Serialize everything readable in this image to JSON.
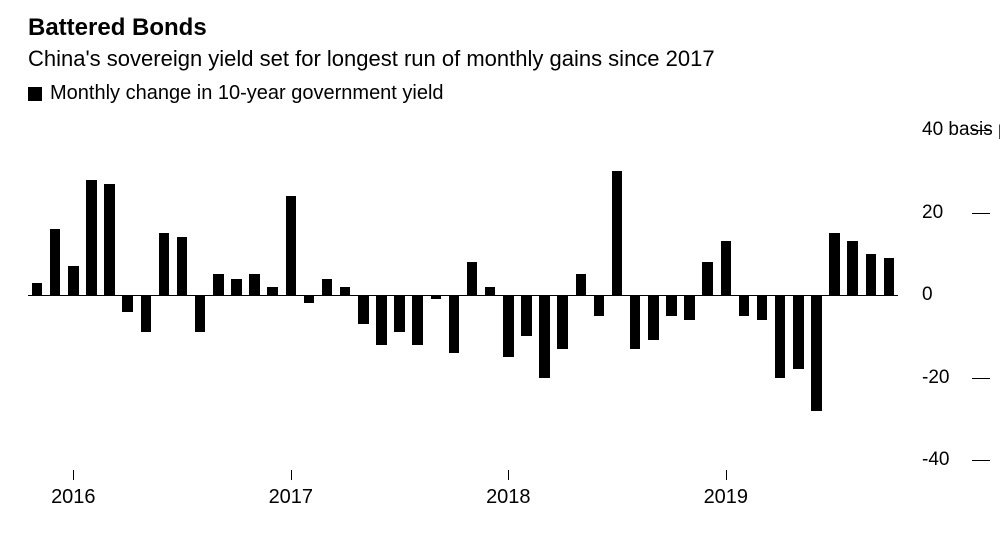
{
  "title": "Battered Bonds",
  "subtitle": "China's sovereign yield set for longest run of monthly gains since 2017",
  "legend_label": "Monthly change in 10-year government yield",
  "chart": {
    "type": "bar",
    "bar_color": "#000000",
    "background_color": "#ffffff",
    "axis_color": "#000000",
    "bar_width_ratio": 0.58,
    "ylim": [
      -40,
      40
    ],
    "ytick_step": 20,
    "y_unit_label": "basis points",
    "y_unit_on_max": true,
    "title_fontsize": 24,
    "subtitle_fontsize": 22,
    "legend_fontsize": 20,
    "tick_fontsize": 20,
    "x_tick_labels": [
      {
        "index": 2,
        "label": "2016"
      },
      {
        "index": 14,
        "label": "2017"
      },
      {
        "index": 26,
        "label": "2018"
      },
      {
        "index": 38,
        "label": "2019"
      }
    ],
    "values": [
      3,
      16,
      7,
      28,
      27,
      -4,
      -9,
      15,
      14,
      -9,
      5,
      4,
      5,
      2,
      24,
      -2,
      4,
      2,
      -7,
      -12,
      -9,
      -12,
      -1,
      -14,
      8,
      2,
      -15,
      -10,
      -20,
      -13,
      5,
      -5,
      30,
      -13,
      -11,
      -5,
      -6,
      8,
      13,
      -5,
      -6,
      -20,
      -18,
      -28,
      15,
      13,
      10,
      9
    ]
  }
}
